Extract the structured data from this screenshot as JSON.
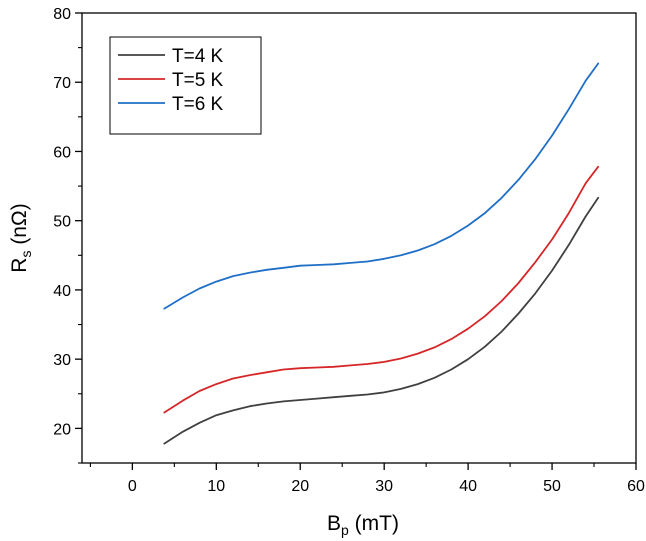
{
  "chart_data": {
    "type": "line",
    "xlabel": {
      "main": "B",
      "sub": "p",
      "unit": " (mT)"
    },
    "ylabel": {
      "main": "R",
      "sub": "s",
      "unit": " (nΩ)"
    },
    "xlim": [
      -6,
      60
    ],
    "ylim": [
      15,
      80
    ],
    "xticks": [
      0,
      10,
      20,
      30,
      40,
      50,
      60
    ],
    "xtick_labels": [
      "0",
      "10",
      "20",
      "30",
      "40",
      "50",
      "60"
    ],
    "yticks": [
      20,
      30,
      40,
      50,
      60,
      70,
      80
    ],
    "ytick_labels": [
      "20",
      "30",
      "40",
      "50",
      "60",
      "70",
      "80"
    ],
    "grid": false,
    "legend_position": "top-left",
    "x": [
      3.8,
      6,
      8,
      10,
      12,
      14,
      16,
      18,
      20,
      22,
      24,
      26,
      28,
      30,
      32,
      34,
      36,
      38,
      40,
      42,
      44,
      46,
      48,
      50,
      52,
      54,
      55.5
    ],
    "series": [
      {
        "name": "T=4 K",
        "color": "#404040",
        "values": [
          17.8,
          19.5,
          20.8,
          21.9,
          22.6,
          23.2,
          23.6,
          23.9,
          24.1,
          24.3,
          24.5,
          24.7,
          24.9,
          25.2,
          25.7,
          26.4,
          27.3,
          28.5,
          30.0,
          31.8,
          34.0,
          36.6,
          39.5,
          42.8,
          46.5,
          50.6,
          53.3
        ]
      },
      {
        "name": "T=5 K",
        "color": "#d62728",
        "values": [
          22.3,
          24.0,
          25.4,
          26.4,
          27.2,
          27.7,
          28.1,
          28.5,
          28.7,
          28.8,
          28.9,
          29.1,
          29.3,
          29.6,
          30.1,
          30.8,
          31.7,
          32.9,
          34.4,
          36.2,
          38.4,
          41.0,
          44.0,
          47.3,
          51.1,
          55.4,
          57.8
        ]
      },
      {
        "name": "T=6 K",
        "color": "#1f6fc6",
        "values": [
          37.3,
          38.9,
          40.2,
          41.2,
          42.0,
          42.5,
          42.9,
          43.2,
          43.5,
          43.6,
          43.7,
          43.9,
          44.1,
          44.5,
          45.0,
          45.7,
          46.6,
          47.8,
          49.3,
          51.1,
          53.3,
          55.9,
          58.9,
          62.3,
          66.1,
          70.2,
          72.7
        ]
      }
    ]
  }
}
